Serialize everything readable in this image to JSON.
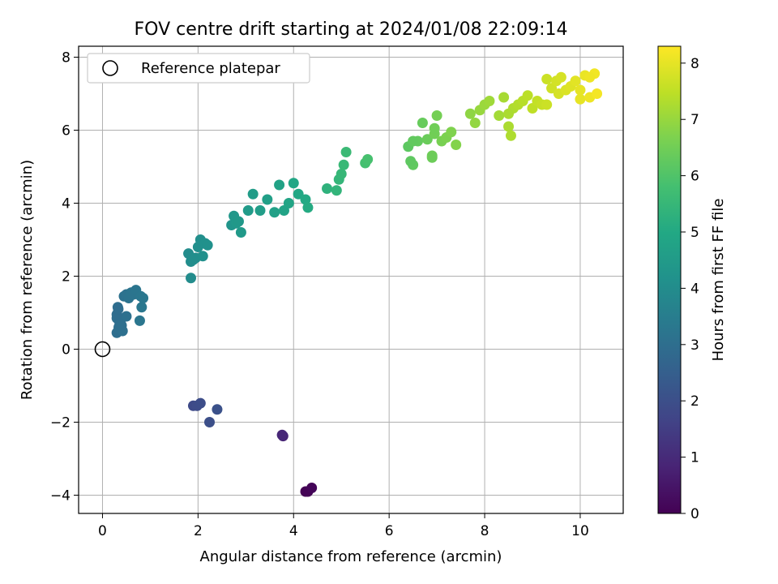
{
  "chart_data": {
    "type": "scatter",
    "title": "FOV centre drift starting at 2024/01/08 22:09:14",
    "xlabel": "Angular distance from reference (arcmin)",
    "ylabel": "Rotation from reference (arcmin)",
    "xlim": [
      -0.5,
      10.9
    ],
    "ylim": [
      -4.5,
      8.3
    ],
    "xticks": [
      0,
      2,
      4,
      6,
      8,
      10
    ],
    "yticks": [
      -4,
      -2,
      0,
      2,
      4,
      6,
      8
    ],
    "xtick_labels": [
      "0",
      "2",
      "4",
      "6",
      "8",
      "10"
    ],
    "ytick_labels": [
      "−4",
      "−2",
      "0",
      "2",
      "4",
      "6",
      "8"
    ],
    "grid": true,
    "legend": {
      "placement": "top-left",
      "entries": [
        "Reference platepar"
      ]
    },
    "reference_point": {
      "x": 0,
      "y": 0,
      "marker": "open-circle"
    },
    "colorbar": {
      "label": "Hours from first FF file",
      "colormap": "viridis",
      "range": [
        0,
        8.3
      ],
      "ticks": [
        0,
        1,
        2,
        3,
        4,
        5,
        6,
        7,
        8
      ],
      "tick_labels": [
        "0",
        "1",
        "2",
        "3",
        "4",
        "5",
        "6",
        "7",
        "8"
      ]
    },
    "series": [
      {
        "x": [
          4.25,
          4.3,
          4.38,
          3.78,
          3.76,
          1.9,
          1.98,
          2.05,
          2.24,
          2.4,
          0.3,
          0.32,
          0.34,
          0.38,
          0.45,
          0.5,
          0.55,
          0.6,
          0.65,
          0.7,
          0.8,
          0.85,
          0.3,
          0.35,
          0.42,
          0.5,
          0.78,
          0.82,
          0.3,
          0.33,
          0.36,
          0.4,
          1.8,
          1.85,
          1.9,
          1.95,
          2.0,
          2.05,
          2.1,
          2.15,
          2.2,
          1.85,
          2.7,
          2.75,
          2.8,
          2.85,
          2.9,
          3.05,
          3.15,
          3.3,
          3.45,
          3.6,
          3.7,
          3.8,
          3.9,
          4.0,
          4.1,
          4.25,
          4.3,
          4.7,
          4.9,
          4.95,
          5.0,
          5.05,
          5.1,
          5.5,
          5.55,
          6.4,
          6.5,
          6.45,
          6.6,
          6.7,
          6.8,
          6.9,
          6.95,
          7.0,
          7.1,
          7.2,
          7.3,
          7.4,
          6.9,
          6.95,
          6.5,
          7.7,
          7.8,
          7.9,
          8.0,
          8.1,
          8.3,
          8.4,
          8.5,
          8.55,
          8.6,
          8.5,
          8.7,
          8.8,
          8.9,
          9.0,
          9.1,
          9.2,
          9.3,
          9.4,
          9.5,
          9.6,
          9.3,
          9.55,
          9.7,
          9.8,
          9.9,
          10.0,
          10.1,
          10.2,
          10.3,
          10.35,
          10.0,
          10.2
        ],
        "y": [
          -3.9,
          -3.9,
          -3.8,
          -2.38,
          -2.35,
          -1.55,
          -1.55,
          -1.48,
          -2.0,
          -1.65,
          0.85,
          1.15,
          0.6,
          0.8,
          1.45,
          1.5,
          1.4,
          1.55,
          1.5,
          1.62,
          1.45,
          1.4,
          0.45,
          0.55,
          0.5,
          0.9,
          0.78,
          1.15,
          0.95,
          1.1,
          0.7,
          0.65,
          2.62,
          2.4,
          2.45,
          2.5,
          2.8,
          3.0,
          2.55,
          2.9,
          2.85,
          1.95,
          3.4,
          3.65,
          3.45,
          3.5,
          3.2,
          3.8,
          4.25,
          3.8,
          4.1,
          3.75,
          4.5,
          3.8,
          4.0,
          4.55,
          4.25,
          4.1,
          3.88,
          4.4,
          4.35,
          4.65,
          4.8,
          5.05,
          5.4,
          5.1,
          5.2,
          5.55,
          5.05,
          5.15,
          5.7,
          6.2,
          5.75,
          5.3,
          5.9,
          6.4,
          5.7,
          5.8,
          5.95,
          5.6,
          5.25,
          6.05,
          5.7,
          6.45,
          6.2,
          6.55,
          6.7,
          6.8,
          6.4,
          6.9,
          6.1,
          5.85,
          6.6,
          6.45,
          6.7,
          6.8,
          6.95,
          6.6,
          6.8,
          6.7,
          7.4,
          7.15,
          7.35,
          7.45,
          6.7,
          7.0,
          7.1,
          7.2,
          7.35,
          6.85,
          7.5,
          6.9,
          7.55,
          7.0,
          7.1,
          7.45
        ],
        "hours": [
          0.0,
          0.05,
          0.1,
          0.85,
          0.9,
          1.85,
          1.9,
          1.95,
          2.0,
          2.05,
          3.0,
          3.03,
          3.05,
          3.08,
          3.1,
          3.12,
          3.15,
          3.18,
          3.2,
          3.22,
          3.25,
          3.28,
          3.0,
          3.02,
          3.04,
          3.06,
          3.27,
          3.3,
          2.95,
          2.97,
          2.99,
          3.01,
          4.0,
          4.02,
          4.04,
          4.06,
          4.08,
          4.1,
          4.12,
          4.14,
          4.16,
          3.98,
          4.3,
          4.35,
          4.4,
          4.42,
          4.45,
          4.5,
          4.55,
          4.6,
          4.65,
          4.7,
          4.75,
          4.8,
          4.85,
          4.9,
          4.95,
          5.0,
          5.05,
          5.3,
          5.4,
          5.45,
          5.5,
          5.55,
          5.6,
          5.8,
          5.85,
          6.2,
          6.25,
          6.22,
          6.3,
          6.35,
          6.4,
          6.45,
          6.5,
          6.55,
          6.6,
          6.65,
          6.7,
          6.75,
          6.42,
          6.48,
          6.27,
          6.9,
          6.95,
          7.0,
          7.05,
          7.1,
          7.15,
          7.2,
          7.25,
          7.28,
          7.3,
          7.25,
          7.35,
          7.4,
          7.45,
          7.5,
          7.55,
          7.6,
          7.65,
          7.7,
          7.75,
          7.8,
          7.65,
          7.78,
          7.85,
          7.9,
          7.95,
          8.0,
          8.05,
          8.1,
          8.15,
          8.18,
          8.0,
          8.1
        ]
      }
    ]
  }
}
